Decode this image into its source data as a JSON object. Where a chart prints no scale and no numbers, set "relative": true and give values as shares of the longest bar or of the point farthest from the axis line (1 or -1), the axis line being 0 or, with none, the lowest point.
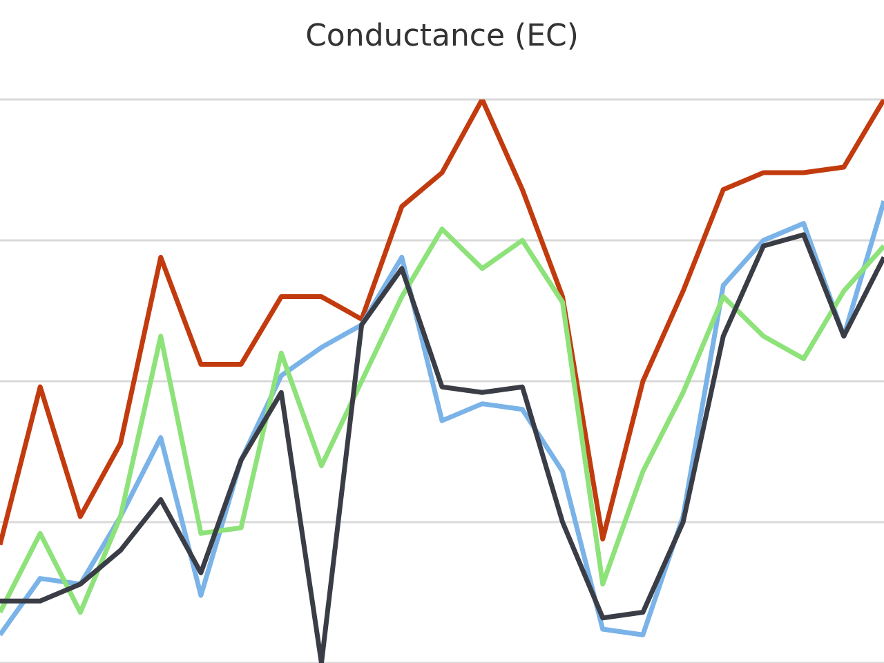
{
  "chart_data": {
    "type": "line",
    "title": "Conductance (EC)",
    "relative": true,
    "grid": "y",
    "tick_labels": false,
    "categories": [
      null,
      null,
      null,
      null,
      null,
      null,
      null,
      null,
      null,
      null,
      null,
      null,
      null,
      null,
      null,
      null,
      null,
      null,
      null,
      null,
      null,
      null,
      null
    ],
    "series": [
      {
        "color": "#c23b0e",
        "values": [
          0.21,
          0.49,
          0.26,
          0.39,
          0.72,
          0.53,
          0.53,
          0.65,
          0.65,
          0.61,
          0.81,
          0.87,
          1,
          0.84,
          0.65,
          0.22,
          0.5,
          0.66,
          0.84,
          0.87,
          0.87,
          0.88,
          1
        ]
      },
      {
        "color": "#7ab3e8",
        "values": [
          0.05,
          0.15,
          0.14,
          0.26,
          0.4,
          0.12,
          0.36,
          0.51,
          0.56,
          0.6,
          0.72,
          0.43,
          0.46,
          0.45,
          0.34,
          0.06,
          0.05,
          0.26,
          0.67,
          0.75,
          0.78,
          0.58,
          0.82
        ]
      },
      {
        "color": "#8ee27a",
        "values": [
          0.09,
          0.23,
          0.09,
          0.26,
          0.58,
          0.23,
          0.24,
          0.55,
          0.35,
          0.5,
          0.65,
          0.77,
          0.7,
          0.75,
          0.64,
          0.14,
          0.34,
          0.48,
          0.65,
          0.58,
          0.54,
          0.66,
          0.74
        ]
      },
      {
        "color": "#3a3d45",
        "values": [
          0.11,
          0.11,
          0.14,
          0.2,
          0.29,
          0.16,
          0.36,
          0.48,
          0,
          0.6,
          0.7,
          0.49,
          0.48,
          0.49,
          0.25,
          0.08,
          0.09,
          0.25,
          0.58,
          0.74,
          0.76,
          0.58,
          0.72
        ]
      }
    ]
  }
}
